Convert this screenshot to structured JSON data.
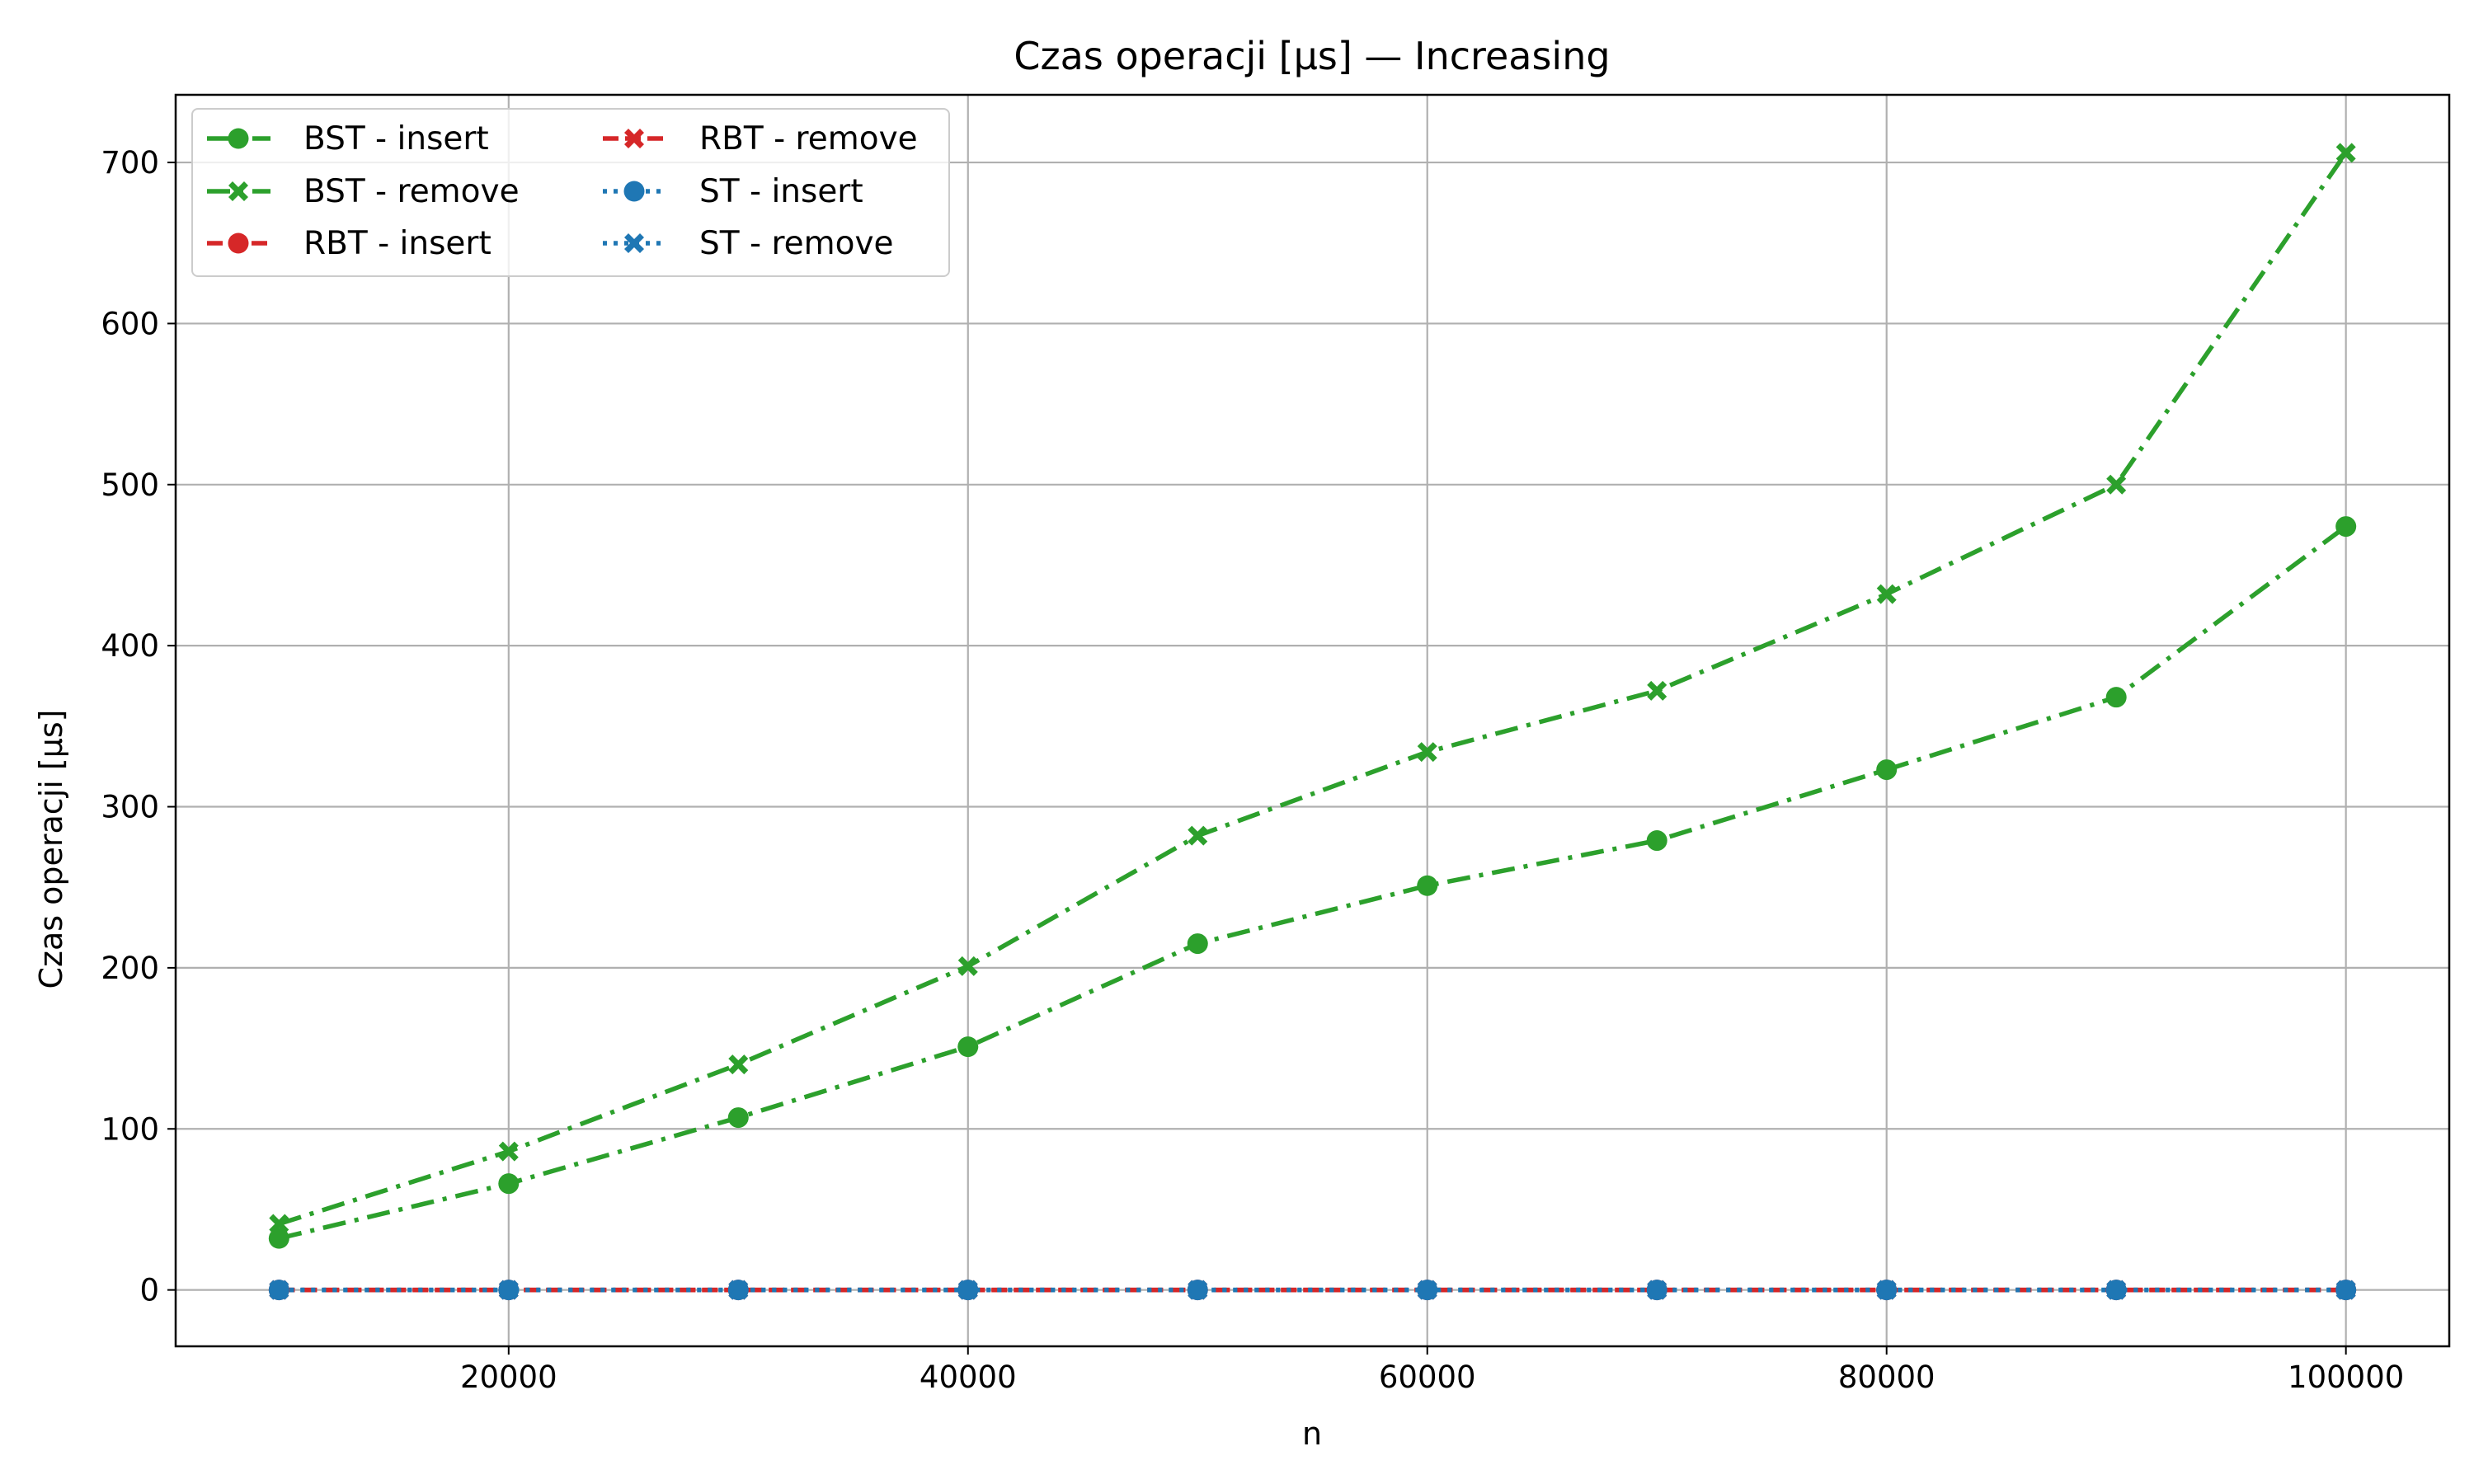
{
  "chart_data": {
    "type": "line",
    "title": "Czas operacji [µs] — Increasing",
    "xlabel": "n",
    "ylabel": "Czas operacji [µs]",
    "xlim": [
      5500,
      104500
    ],
    "ylim": [
      -35,
      742
    ],
    "xticks": [
      20000,
      40000,
      60000,
      80000,
      100000
    ],
    "yticks": [
      0,
      100,
      200,
      300,
      400,
      500,
      600,
      700
    ],
    "grid": true,
    "legend_position": "top-left",
    "legend_columns": 2,
    "x": [
      10000,
      20000,
      30000,
      40000,
      50000,
      60000,
      70000,
      80000,
      90000,
      100000
    ],
    "series": [
      {
        "name": "BST - insert",
        "color": "#2ca02c",
        "line_style": "dashdot",
        "marker": "circle",
        "values": [
          32,
          66,
          107,
          151,
          215,
          251,
          279,
          323,
          368,
          474
        ]
      },
      {
        "name": "BST - remove",
        "color": "#2ca02c",
        "line_style": "dashdot",
        "marker": "x",
        "values": [
          41,
          86,
          140,
          201,
          282,
          334,
          372,
          432,
          500,
          706
        ]
      },
      {
        "name": "RBT - insert",
        "color": "#d62728",
        "line_style": "dashed",
        "marker": "circle",
        "values": [
          0,
          0,
          0,
          0,
          0,
          0,
          0,
          0,
          0,
          0
        ]
      },
      {
        "name": "RBT - remove",
        "color": "#d62728",
        "line_style": "dashed",
        "marker": "x",
        "values": [
          0,
          0,
          0,
          0,
          0,
          0,
          0,
          0,
          0,
          0
        ]
      },
      {
        "name": "ST - insert",
        "color": "#1f77b4",
        "line_style": "dotted",
        "marker": "circle",
        "values": [
          0,
          0,
          0,
          0,
          0,
          0,
          0,
          0,
          0,
          0
        ]
      },
      {
        "name": "ST - remove",
        "color": "#1f77b4",
        "line_style": "dotted",
        "marker": "x",
        "values": [
          0,
          0,
          0,
          0,
          0,
          0,
          0,
          0,
          0,
          0
        ]
      }
    ]
  }
}
